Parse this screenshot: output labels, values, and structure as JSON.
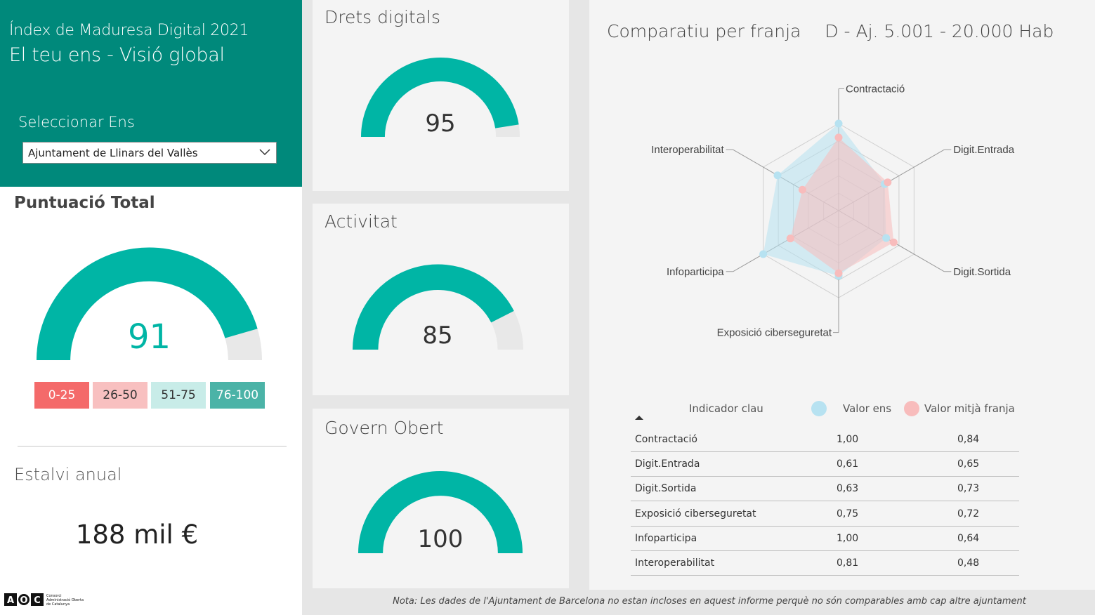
{
  "header": {
    "title": "Índex de Maduresa Digital 2021",
    "subtitle": "El teu ens - Visió global"
  },
  "selector": {
    "label": "Seleccionar Ens",
    "value": "Ajuntament de Llinars del Vallès",
    "icon": "chevron-down-icon"
  },
  "total": {
    "title": "Puntuació Total",
    "score": "91",
    "score_value": 91,
    "legend": [
      {
        "label": "0-25",
        "bg": "#f46a6a",
        "fg": "#ffffff"
      },
      {
        "label": "26-50",
        "bg": "#f8c0c0",
        "fg": "#333333"
      },
      {
        "label": "51-75",
        "bg": "#c8ece8",
        "fg": "#333333"
      },
      {
        "label": "76-100",
        "bg": "#4bb3a7",
        "fg": "#ffffff"
      }
    ]
  },
  "savings": {
    "label": "Estalvi anual",
    "value": "188 mil €"
  },
  "cards": [
    {
      "title": "Drets digitals",
      "score": "95",
      "score_value": 95
    },
    {
      "title": "Activitat",
      "score": "85",
      "score_value": 85
    },
    {
      "title": "Govern Obert",
      "score": "100",
      "score_value": 100
    }
  ],
  "comparison": {
    "title": "Comparatiu per franja",
    "band": "D - Aj. 5.001 - 20.000 Hab"
  },
  "chart_data": {
    "type": "radar",
    "axes": [
      "Contractació",
      "Digit.Entrada",
      "Digit.Sortida",
      "Exposició ciberseguretat",
      "Infoparticipa",
      "Interoperabilitat"
    ],
    "series": [
      {
        "name": "Valor ens",
        "color": "#b7e2f1",
        "values": [
          1.0,
          0.61,
          0.63,
          0.75,
          1.0,
          0.81
        ]
      },
      {
        "name": "Valor mitjà franja",
        "color": "#f8bcbc",
        "values": [
          0.84,
          0.65,
          0.73,
          0.72,
          0.64,
          0.48
        ]
      }
    ],
    "range": [
      0,
      1
    ]
  },
  "table": {
    "col_indicator": "Indicador clau",
    "col_ens": "Valor ens",
    "col_franja": "Valor mitjà franja",
    "rows": [
      {
        "indicator": "Contractació",
        "ens": "1,00",
        "franja": "0,84"
      },
      {
        "indicator": "Digit.Entrada",
        "ens": "0,61",
        "franja": "0,65"
      },
      {
        "indicator": "Digit.Sortida",
        "ens": "0,63",
        "franja": "0,73"
      },
      {
        "indicator": "Exposició ciberseguretat",
        "ens": "0,75",
        "franja": "0,72"
      },
      {
        "indicator": "Infoparticipa",
        "ens": "1,00",
        "franja": "0,64"
      },
      {
        "indicator": "Interoperabilitat",
        "ens": "0,81",
        "franja": "0,48"
      }
    ]
  },
  "footer": {
    "note": "Nota: Les dades de l'Ajuntament de Barcelona no estan incloses en aquest informe perquè no són comparables amb cap altre ajuntament"
  },
  "logo": {
    "text": "AOC",
    "caption": "Consorci Administració Oberta de Catalunya"
  },
  "colors": {
    "teal": "#00897b",
    "gauge_fill": "#00b5a5",
    "gauge_track": "#e8e8e8"
  }
}
